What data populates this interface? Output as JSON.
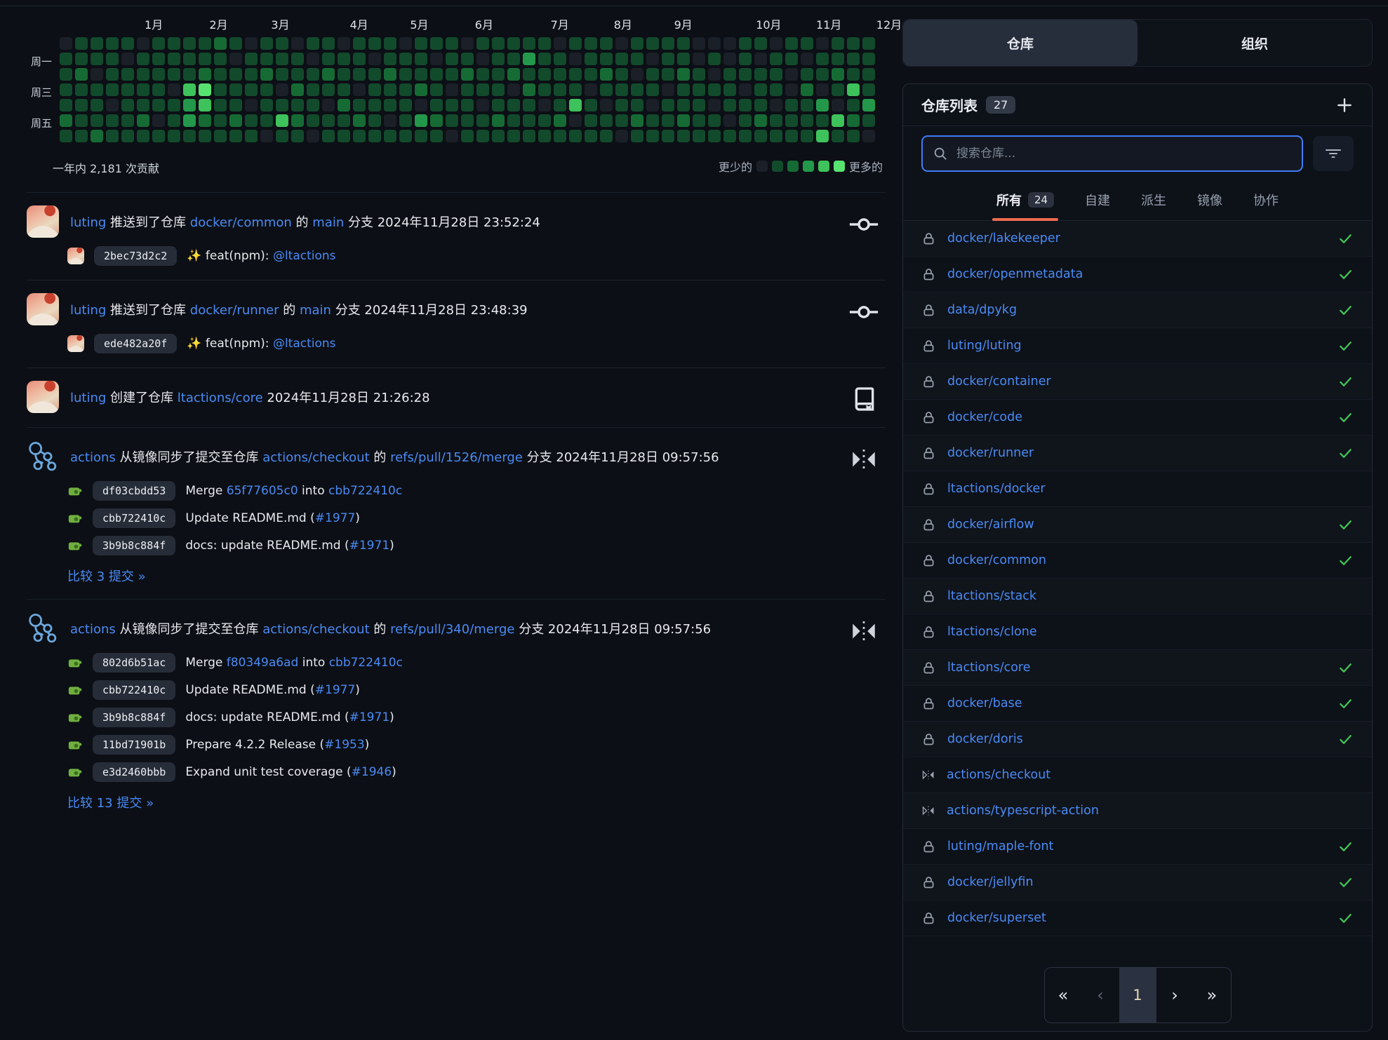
{
  "colors": {
    "page_bg": "#0c0f15",
    "panel_bg": "#0d1118",
    "link_blue": "#4a8bf5",
    "check_green": "#41c558",
    "active_filter_underline": "#ee6a50",
    "search_focus_border": "#3e7df5",
    "heat_palette": [
      "#1a1f28",
      "#124a2c",
      "#166b34",
      "#23984a",
      "#3ec25b",
      "#58e371"
    ]
  },
  "heatmap": {
    "months": [
      "1月",
      "2月",
      "3月",
      "4月",
      "5月",
      "6月",
      "7月",
      "8月",
      "9月",
      "10月",
      "11月",
      "12月"
    ],
    "month_cols": [
      5.5,
      9.7,
      13.7,
      18.8,
      22.7,
      26.9,
      31.8,
      35.9,
      39.8,
      45.1,
      49,
      52.9
    ],
    "day_labels": [
      {
        "row": 1,
        "label": "周一"
      },
      {
        "row": 3,
        "label": "周三"
      },
      {
        "row": 5,
        "label": "周五"
      }
    ],
    "weeks": [
      "0111121",
      "1121111",
      "1101112",
      "1111011",
      "1011111",
      "0111121",
      "1111101",
      "1110111",
      "1114331",
      "1125421",
      "2111111",
      "1011121",
      "0111011",
      "1121110",
      "1110141",
      "0112121",
      "1011110",
      "1121011",
      "0111211",
      "1110121",
      "1011111",
      "1121101",
      "0111111",
      "1112031",
      "1011121",
      "1110110",
      "0121111",
      "1011011",
      "1111121",
      "1120111",
      "1312111",
      "1111011",
      "0111121",
      "1011401",
      "1110111",
      "1121011",
      "0111110",
      "1101121",
      "1011011",
      "1110111",
      "1121121",
      "0011111",
      "0101011",
      "0011101",
      "1110111",
      "1011121",
      "0111011",
      "1100111",
      "1012111",
      "0110314",
      "1121041",
      "1114121",
      "1111310"
    ],
    "total_label": "一年内 2,181 次贡献",
    "legend": {
      "less": "更少的",
      "more": "更多的"
    }
  },
  "feed": [
    {
      "avatar": "luting",
      "right_icon": "commit-icon",
      "header": [
        {
          "t": "link",
          "s": "luting"
        },
        {
          "t": "text",
          "s": " 推送到了仓库 "
        },
        {
          "t": "link",
          "s": "docker/common"
        },
        {
          "t": "text",
          "s": " 的 "
        },
        {
          "t": "link",
          "s": "main"
        },
        {
          "t": "text",
          "s": " 分支 2024年11月28日 23:52:24"
        }
      ],
      "commits": [
        {
          "avatar": "luting",
          "hash": "2bec73d2c2",
          "msg": [
            {
              "t": "text",
              "s": "✨ feat(npm): "
            },
            {
              "t": "link",
              "s": "@ltactions"
            }
          ]
        }
      ]
    },
    {
      "avatar": "luting",
      "right_icon": "commit-icon",
      "header": [
        {
          "t": "link",
          "s": "luting"
        },
        {
          "t": "text",
          "s": " 推送到了仓库 "
        },
        {
          "t": "link",
          "s": "docker/runner"
        },
        {
          "t": "text",
          "s": " 的 "
        },
        {
          "t": "link",
          "s": "main"
        },
        {
          "t": "text",
          "s": " 分支 2024年11月28日 23:48:39"
        }
      ],
      "commits": [
        {
          "avatar": "luting",
          "hash": "ede482a20f",
          "msg": [
            {
              "t": "text",
              "s": "✨ feat(npm): "
            },
            {
              "t": "link",
              "s": "@ltactions"
            }
          ]
        }
      ]
    },
    {
      "avatar": "luting",
      "right_icon": "repo-icon",
      "header": [
        {
          "t": "link",
          "s": "luting"
        },
        {
          "t": "text",
          "s": " 创建了仓库 "
        },
        {
          "t": "link",
          "s": "ltactions/core"
        },
        {
          "t": "text",
          "s": " 2024年11月28日 21:26:28"
        }
      ],
      "commits": []
    },
    {
      "avatar": "actions",
      "right_icon": "mirror-icon",
      "header": [
        {
          "t": "link",
          "s": "actions"
        },
        {
          "t": "text",
          "s": " 从镜像同步了提交至仓库 "
        },
        {
          "t": "link",
          "s": "actions/checkout"
        },
        {
          "t": "text",
          "s": " 的 "
        },
        {
          "t": "link",
          "s": "refs/pull/1526/merge"
        },
        {
          "t": "text",
          "s": " 分支 2024年11月28日 09:57:56"
        }
      ],
      "commits": [
        {
          "avatar": "identicon",
          "hash": "df03cbdd53",
          "msg": [
            {
              "t": "text",
              "s": "Merge "
            },
            {
              "t": "link",
              "s": "65f77605c0"
            },
            {
              "t": "text",
              "s": " into "
            },
            {
              "t": "link",
              "s": "cbb722410c"
            }
          ]
        },
        {
          "avatar": "identicon",
          "hash": "cbb722410c",
          "msg": [
            {
              "t": "text",
              "s": "Update README.md ("
            },
            {
              "t": "link",
              "s": "#1977"
            },
            {
              "t": "text",
              "s": ")"
            }
          ]
        },
        {
          "avatar": "identicon",
          "hash": "3b9b8c884f",
          "msg": [
            {
              "t": "text",
              "s": "docs: update README.md ("
            },
            {
              "t": "link",
              "s": "#1971"
            },
            {
              "t": "text",
              "s": ")"
            }
          ]
        }
      ],
      "footer": "比较 3 提交 »"
    },
    {
      "avatar": "actions",
      "right_icon": "mirror-icon",
      "header": [
        {
          "t": "link",
          "s": "actions"
        },
        {
          "t": "text",
          "s": " 从镜像同步了提交至仓库 "
        },
        {
          "t": "link",
          "s": "actions/checkout"
        },
        {
          "t": "text",
          "s": " 的 "
        },
        {
          "t": "link",
          "s": "refs/pull/340/merge"
        },
        {
          "t": "text",
          "s": " 分支 2024年11月28日 09:57:56"
        }
      ],
      "commits": [
        {
          "avatar": "identicon",
          "hash": "802d6b51ac",
          "msg": [
            {
              "t": "text",
              "s": "Merge "
            },
            {
              "t": "link",
              "s": "f80349a6ad"
            },
            {
              "t": "text",
              "s": " into "
            },
            {
              "t": "link",
              "s": "cbb722410c"
            }
          ]
        },
        {
          "avatar": "identicon",
          "hash": "cbb722410c",
          "msg": [
            {
              "t": "text",
              "s": "Update README.md ("
            },
            {
              "t": "link",
              "s": "#1977"
            },
            {
              "t": "text",
              "s": ")"
            }
          ]
        },
        {
          "avatar": "identicon",
          "hash": "3b9b8c884f",
          "msg": [
            {
              "t": "text",
              "s": "docs: update README.md ("
            },
            {
              "t": "link",
              "s": "#1971"
            },
            {
              "t": "text",
              "s": ")"
            }
          ]
        },
        {
          "avatar": "identicon",
          "hash": "11bd71901b",
          "msg": [
            {
              "t": "text",
              "s": "Prepare 4.2.2 Release ("
            },
            {
              "t": "link",
              "s": "#1953"
            },
            {
              "t": "text",
              "s": ")"
            }
          ]
        },
        {
          "avatar": "identicon",
          "hash": "e3d2460bbb",
          "msg": [
            {
              "t": "text",
              "s": "Expand unit test coverage ("
            },
            {
              "t": "link",
              "s": "#1946"
            },
            {
              "t": "text",
              "s": ")"
            }
          ]
        }
      ],
      "footer": "比较 13 提交 »"
    }
  ],
  "sidebar": {
    "tabs": [
      {
        "label": "仓库",
        "active": true
      },
      {
        "label": "组织",
        "active": false
      }
    ],
    "panel": {
      "title": "仓库列表",
      "count": "27",
      "add_button": "+",
      "search": {
        "placeholder": "搜索仓库..."
      },
      "filters": [
        {
          "label": "所有",
          "count": "24",
          "active": true
        },
        {
          "label": "自建",
          "active": false
        },
        {
          "label": "派生",
          "active": false
        },
        {
          "label": "镜像",
          "active": false
        },
        {
          "label": "协作",
          "active": false
        }
      ],
      "repos": [
        {
          "name": "docker/lakekeeper",
          "icon": "lock-icon",
          "done": true
        },
        {
          "name": "docker/openmetadata",
          "icon": "lock-icon",
          "done": true
        },
        {
          "name": "data/dpykg",
          "icon": "lock-icon",
          "done": true
        },
        {
          "name": "luting/luting",
          "icon": "lock-icon",
          "done": true
        },
        {
          "name": "docker/container",
          "icon": "lock-icon",
          "done": true
        },
        {
          "name": "docker/code",
          "icon": "lock-icon",
          "done": true
        },
        {
          "name": "docker/runner",
          "icon": "lock-icon",
          "done": true
        },
        {
          "name": "ltactions/docker",
          "icon": "lock-icon",
          "done": false
        },
        {
          "name": "docker/airflow",
          "icon": "lock-icon",
          "done": true
        },
        {
          "name": "docker/common",
          "icon": "lock-icon",
          "done": true
        },
        {
          "name": "ltactions/stack",
          "icon": "lock-icon",
          "done": false
        },
        {
          "name": "ltactions/clone",
          "icon": "lock-icon",
          "done": false
        },
        {
          "name": "ltactions/core",
          "icon": "lock-icon",
          "done": true
        },
        {
          "name": "docker/base",
          "icon": "lock-icon",
          "done": true
        },
        {
          "name": "docker/doris",
          "icon": "lock-icon",
          "done": true
        },
        {
          "name": "actions/checkout",
          "icon": "mirror-icon",
          "done": false
        },
        {
          "name": "actions/typescript-action",
          "icon": "mirror-icon",
          "done": false
        },
        {
          "name": "luting/maple-font",
          "icon": "lock-icon",
          "done": true
        },
        {
          "name": "docker/jellyfin",
          "icon": "lock-icon",
          "done": true
        },
        {
          "name": "docker/superset",
          "icon": "lock-icon",
          "done": true
        }
      ],
      "pagination": {
        "first": "«",
        "prev": "‹",
        "current": "1",
        "next": "›",
        "last": "»"
      }
    }
  }
}
